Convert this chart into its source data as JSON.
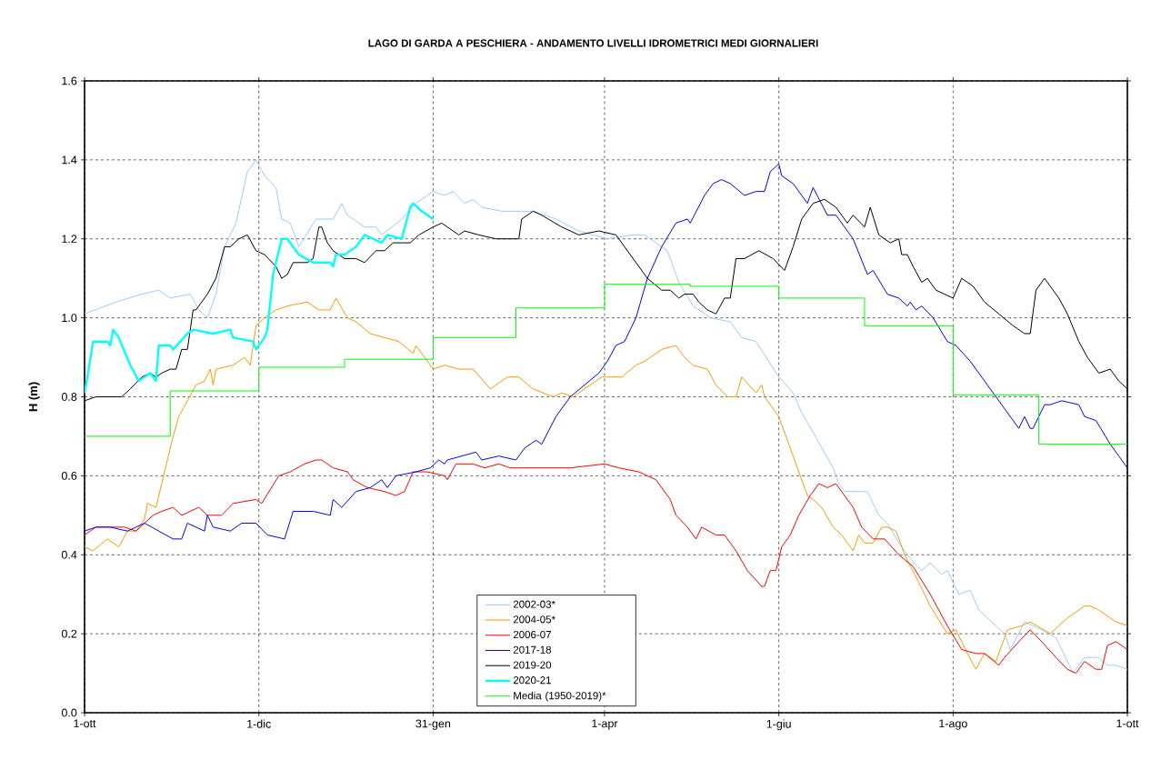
{
  "chart_data": {
    "type": "line",
    "title": "LAGO DI GARDA A PESCHIERA - ANDAMENTO  LIVELLI IDROMETRICI MEDI GIORNALIERI",
    "ylabel": "H (m)",
    "xlim": [
      "2001-10-01",
      "2002-10-01"
    ],
    "ylim": [
      0,
      1.6
    ],
    "xticks": [
      {
        "value": "2001-10-01",
        "label": "1-ott"
      },
      {
        "value": "2001-12-01",
        "label": "1-dic"
      },
      {
        "value": "2002-01-31",
        "label": "31-gen"
      },
      {
        "value": "2002-04-01",
        "label": "1-apr"
      },
      {
        "value": "2002-06-01",
        "label": "1-giu"
      },
      {
        "value": "2002-08-01",
        "label": "1-ago"
      },
      {
        "value": "2002-10-01",
        "label": "1-ott"
      }
    ],
    "yticks": [
      {
        "value": 0,
        "label": "0.0"
      },
      0.2,
      0.4,
      0.6,
      0.8,
      {
        "value": 1,
        "label": "1.0"
      },
      1.2,
      1.4,
      1.6
    ],
    "grid": true,
    "legend": "bottom",
    "line_style": "solid",
    "series": [
      {
        "name": "2002-03*",
        "color": "#99ccff",
        "x": [
          "2001-10-01",
          "2001-10-12",
          "2001-10-21",
          "2001-10-27",
          "2001-10-31",
          "2001-11-07",
          "2001-11-10",
          "2001-11-13",
          "2001-11-16",
          "2001-11-19",
          "2001-11-23",
          "2001-11-27",
          "2001-11-30",
          "2001-12-03",
          "2001-12-07",
          "2001-12-09",
          "2001-12-12",
          "2001-12-15",
          "2001-12-21",
          "2001-12-27",
          "2001-12-30",
          "2002-01-01",
          "2002-01-07",
          "2002-01-11",
          "2002-01-13",
          "2002-01-20",
          "2002-01-25",
          "2002-01-31",
          "2002-02-04",
          "2002-02-07",
          "2002-02-11",
          "2002-02-14",
          "2002-02-17",
          "2002-02-24",
          "2002-03-07",
          "2002-03-15",
          "2002-03-23",
          "2002-04-02",
          "2002-04-11",
          "2002-04-15",
          "2002-04-23",
          "2002-04-27",
          "2002-05-02",
          "2002-05-08",
          "2002-05-15",
          "2002-05-19",
          "2002-05-24",
          "2002-06-01",
          "2002-06-06",
          "2002-06-09",
          "2002-06-13",
          "2002-06-20",
          "2002-06-22",
          "2002-06-24",
          "2002-06-29",
          "2002-07-02",
          "2002-07-06",
          "2002-07-09",
          "2002-07-13",
          "2002-07-17",
          "2002-07-21",
          "2002-07-24",
          "2002-07-28",
          "2002-07-30",
          "2002-08-03",
          "2002-08-07",
          "2002-08-10",
          "2002-08-16",
          "2002-08-19",
          "2002-08-21",
          "2002-08-26",
          "2002-09-01",
          "2002-09-06",
          "2002-09-12",
          "2002-09-16",
          "2002-09-21",
          "2002-09-24",
          "2002-09-27",
          "2002-10-01"
        ],
        "values": [
          1.01,
          1.04,
          1.06,
          1.07,
          1.05,
          1.06,
          1.02,
          1.0,
          1.06,
          1.18,
          1.24,
          1.37,
          1.4,
          1.36,
          1.33,
          1.25,
          1.24,
          1.18,
          1.25,
          1.25,
          1.29,
          1.26,
          1.23,
          1.23,
          1.21,
          1.25,
          1.29,
          1.32,
          1.31,
          1.32,
          1.29,
          1.3,
          1.28,
          1.27,
          1.27,
          1.25,
          1.22,
          1.2,
          1.21,
          1.21,
          1.17,
          1.09,
          1.03,
          1.0,
          0.99,
          0.95,
          0.94,
          0.85,
          0.81,
          0.76,
          0.71,
          0.62,
          0.58,
          0.56,
          0.56,
          0.56,
          0.5,
          0.48,
          0.43,
          0.39,
          0.36,
          0.38,
          0.35,
          0.36,
          0.3,
          0.31,
          0.26,
          0.22,
          0.2,
          0.16,
          0.23,
          0.21,
          0.19,
          0.1,
          0.14,
          0.14,
          0.12,
          0.12,
          0.11
        ]
      },
      {
        "name": "2004-05*",
        "color": "#ff9900",
        "x": [
          "2001-10-01",
          "2001-10-04",
          "2001-10-09",
          "2001-10-13",
          "2001-10-16",
          "2001-10-19",
          "2001-10-22",
          "2001-10-23",
          "2001-10-26",
          "2001-10-27",
          "2001-10-29",
          "2001-11-01",
          "2001-11-03",
          "2001-11-06",
          "2001-11-09",
          "2001-11-12",
          "2001-11-14",
          "2001-11-15",
          "2001-11-16",
          "2001-11-22",
          "2001-11-26",
          "2001-11-28",
          "2001-11-30",
          "2001-12-03",
          "2001-12-07",
          "2001-12-11",
          "2001-12-18",
          "2001-12-22",
          "2001-12-26",
          "2001-12-28",
          "2002-01-01",
          "2002-01-04",
          "2002-01-09",
          "2002-01-14",
          "2002-01-19",
          "2002-01-24",
          "2002-01-25",
          "2002-01-31",
          "2002-02-04",
          "2002-02-09",
          "2002-02-14",
          "2002-02-20",
          "2002-02-26",
          "2002-03-02",
          "2002-03-07",
          "2002-03-14",
          "2002-03-17",
          "2002-03-21",
          "2002-03-25",
          "2002-03-31",
          "2002-04-07",
          "2002-04-12",
          "2002-04-15",
          "2002-04-21",
          "2002-04-26",
          "2002-04-29",
          "2002-05-02",
          "2002-05-07",
          "2002-05-10",
          "2002-05-14",
          "2002-05-17",
          "2002-05-19",
          "2002-05-24",
          "2002-05-26",
          "2002-05-27",
          "2002-06-01",
          "2002-06-06",
          "2002-06-11",
          "2002-06-13",
          "2002-06-16",
          "2002-06-20",
          "2002-06-23",
          "2002-06-27",
          "2002-06-29",
          "2002-07-01",
          "2002-07-04",
          "2002-07-07",
          "2002-07-09",
          "2002-07-12",
          "2002-07-15",
          "2002-07-20",
          "2002-07-24",
          "2002-07-30",
          "2002-08-02",
          "2002-08-06",
          "2002-08-09",
          "2002-08-12",
          "2002-08-16",
          "2002-08-20",
          "2002-08-25",
          "2002-08-28",
          "2002-09-04",
          "2002-09-10",
          "2002-09-16",
          "2002-09-18",
          "2002-09-21",
          "2002-09-27",
          "2002-10-01"
        ],
        "values": [
          0.42,
          0.41,
          0.44,
          0.42,
          0.46,
          0.46,
          0.49,
          0.53,
          0.52,
          0.55,
          0.61,
          0.7,
          0.75,
          0.79,
          0.83,
          0.84,
          0.87,
          0.83,
          0.87,
          0.88,
          0.9,
          0.88,
          0.98,
          1.0,
          1.02,
          1.03,
          1.04,
          1.02,
          1.02,
          1.05,
          1.0,
          0.99,
          0.96,
          0.95,
          0.94,
          0.91,
          0.93,
          0.87,
          0.88,
          0.87,
          0.87,
          0.82,
          0.85,
          0.85,
          0.82,
          0.8,
          0.81,
          0.8,
          0.82,
          0.85,
          0.85,
          0.88,
          0.89,
          0.92,
          0.93,
          0.9,
          0.88,
          0.87,
          0.83,
          0.8,
          0.8,
          0.85,
          0.81,
          0.83,
          0.8,
          0.75,
          0.65,
          0.55,
          0.54,
          0.52,
          0.47,
          0.45,
          0.41,
          0.45,
          0.43,
          0.43,
          0.47,
          0.47,
          0.46,
          0.4,
          0.33,
          0.27,
          0.2,
          0.21,
          0.15,
          0.11,
          0.15,
          0.13,
          0.21,
          0.22,
          0.23,
          0.2,
          0.24,
          0.27,
          0.27,
          0.26,
          0.23,
          0.22
        ]
      },
      {
        "name": "2006-07",
        "color": "#ff0000",
        "x": [
          "2001-10-01",
          "2001-10-05",
          "2001-10-10",
          "2001-10-15",
          "2001-10-19",
          "2001-10-25",
          "2001-10-28",
          "2001-11-01",
          "2001-11-04",
          "2001-11-10",
          "2001-11-13",
          "2001-11-18",
          "2001-11-22",
          "2001-11-30",
          "2001-12-02",
          "2001-12-08",
          "2001-12-12",
          "2001-12-17",
          "2001-12-21",
          "2001-12-23",
          "2001-12-27",
          "2002-01-01",
          "2002-01-03",
          "2002-01-08",
          "2002-01-14",
          "2002-01-18",
          "2002-01-21",
          "2002-01-24",
          "2002-01-29",
          "2002-02-04",
          "2002-02-05",
          "2002-02-08",
          "2002-02-14",
          "2002-02-18",
          "2002-02-23",
          "2002-02-27",
          "2002-03-08",
          "2002-03-20",
          "2002-04-01",
          "2002-04-06",
          "2002-04-13",
          "2002-04-19",
          "2002-04-24",
          "2002-04-26",
          "2002-04-30",
          "2002-05-03",
          "2002-05-05",
          "2002-05-10",
          "2002-05-13",
          "2002-05-17",
          "2002-05-21",
          "2002-05-26",
          "2002-05-27",
          "2002-05-29",
          "2002-05-31",
          "2002-06-02",
          "2002-06-05",
          "2002-06-08",
          "2002-06-12",
          "2002-06-15",
          "2002-06-18",
          "2002-06-21",
          "2002-06-24",
          "2002-06-27",
          "2002-06-30",
          "2002-07-04",
          "2002-07-08",
          "2002-07-13",
          "2002-07-18",
          "2002-07-24",
          "2002-07-30",
          "2002-08-04",
          "2002-08-09",
          "2002-08-12",
          "2002-08-17",
          "2002-08-19",
          "2002-08-24",
          "2002-08-28",
          "2002-09-01",
          "2002-09-06",
          "2002-09-10",
          "2002-09-13",
          "2002-09-16",
          "2002-09-20",
          "2002-09-22",
          "2002-09-24",
          "2002-09-27",
          "2002-10-01"
        ],
        "values": [
          0.45,
          0.47,
          0.47,
          0.47,
          0.46,
          0.5,
          0.51,
          0.52,
          0.5,
          0.52,
          0.5,
          0.5,
          0.53,
          0.54,
          0.53,
          0.6,
          0.61,
          0.63,
          0.64,
          0.64,
          0.62,
          0.61,
          0.59,
          0.57,
          0.56,
          0.55,
          0.56,
          0.61,
          0.61,
          0.6,
          0.59,
          0.63,
          0.63,
          0.62,
          0.63,
          0.62,
          0.62,
          0.62,
          0.63,
          0.62,
          0.61,
          0.59,
          0.54,
          0.5,
          0.47,
          0.44,
          0.47,
          0.45,
          0.45,
          0.41,
          0.36,
          0.32,
          0.32,
          0.36,
          0.36,
          0.42,
          0.45,
          0.5,
          0.55,
          0.58,
          0.57,
          0.58,
          0.55,
          0.52,
          0.47,
          0.44,
          0.44,
          0.4,
          0.37,
          0.3,
          0.22,
          0.16,
          0.15,
          0.15,
          0.12,
          0.14,
          0.18,
          0.21,
          0.18,
          0.14,
          0.11,
          0.1,
          0.13,
          0.11,
          0.11,
          0.17,
          0.18,
          0.16
        ]
      },
      {
        "name": "2017-18",
        "color": "#0000ff",
        "x": [
          "2001-10-01",
          "2001-10-05",
          "2001-10-10",
          "2001-10-16",
          "2001-10-22",
          "2001-10-27",
          "2001-11-01",
          "2001-11-04",
          "2001-11-06",
          "2001-11-12",
          "2001-11-13",
          "2001-11-15",
          "2001-11-21",
          "2001-11-25",
          "2001-11-30",
          "2001-12-04",
          "2001-12-10",
          "2001-12-13",
          "2001-12-20",
          "2001-12-26",
          "2001-12-27",
          "2001-12-30",
          "2002-01-04",
          "2002-01-09",
          "2002-01-13",
          "2002-01-15",
          "2002-01-18",
          "2002-01-25",
          "2002-01-30",
          "2002-02-02",
          "2002-02-04",
          "2002-02-05",
          "2002-02-15",
          "2002-02-17",
          "2002-02-23",
          "2002-03-01",
          "2002-03-04",
          "2002-03-08",
          "2002-03-10",
          "2002-03-15",
          "2002-03-20",
          "2002-03-30",
          "2002-04-02",
          "2002-04-05",
          "2002-04-08",
          "2002-04-12",
          "2002-04-16",
          "2002-04-21",
          "2002-04-26",
          "2002-04-30",
          "2002-05-01",
          "2002-05-06",
          "2002-05-09",
          "2002-05-12",
          "2002-05-15",
          "2002-05-20",
          "2002-05-24",
          "2002-05-27",
          "2002-05-29",
          "2002-06-01",
          "2002-06-02",
          "2002-06-06",
          "2002-06-11",
          "2002-06-13",
          "2002-06-18",
          "2002-06-21",
          "2002-06-27",
          "2002-07-02",
          "2002-07-04",
          "2002-07-09",
          "2002-07-13",
          "2002-07-16",
          "2002-07-17",
          "2002-07-19",
          "2002-07-21",
          "2002-07-25",
          "2002-07-30",
          "2002-08-02",
          "2002-08-07",
          "2002-08-13",
          "2002-08-19",
          "2002-08-24",
          "2002-08-26",
          "2002-08-28",
          "2002-08-29",
          "2002-08-31",
          "2002-09-02",
          "2002-09-04",
          "2002-09-08",
          "2002-09-14",
          "2002-09-16",
          "2002-09-20",
          "2002-09-25",
          "2002-09-28",
          "2002-10-01"
        ],
        "values": [
          0.46,
          0.47,
          0.47,
          0.46,
          0.48,
          0.46,
          0.44,
          0.44,
          0.48,
          0.46,
          0.5,
          0.47,
          0.46,
          0.48,
          0.48,
          0.45,
          0.44,
          0.51,
          0.51,
          0.5,
          0.54,
          0.52,
          0.56,
          0.57,
          0.59,
          0.57,
          0.6,
          0.61,
          0.62,
          0.64,
          0.63,
          0.64,
          0.66,
          0.64,
          0.65,
          0.64,
          0.67,
          0.69,
          0.68,
          0.75,
          0.8,
          0.86,
          0.89,
          0.93,
          0.94,
          1.0,
          1.1,
          1.18,
          1.24,
          1.25,
          1.24,
          1.31,
          1.34,
          1.35,
          1.34,
          1.31,
          1.32,
          1.32,
          1.37,
          1.39,
          1.36,
          1.34,
          1.29,
          1.33,
          1.26,
          1.26,
          1.2,
          1.11,
          1.12,
          1.06,
          1.05,
          1.03,
          1.04,
          1.02,
          1.03,
          1.0,
          0.94,
          0.93,
          0.89,
          0.83,
          0.77,
          0.72,
          0.75,
          0.72,
          0.72,
          0.75,
          0.78,
          0.78,
          0.79,
          0.78,
          0.75,
          0.74,
          0.68,
          0.65,
          0.62
        ]
      },
      {
        "name": "2019-20",
        "color": "#000000",
        "x": [
          "2001-10-01",
          "2001-10-05",
          "2001-10-11",
          "2001-10-14",
          "2001-10-17",
          "2001-10-21",
          "2001-10-24",
          "2001-10-26",
          "2001-10-28",
          "2001-10-31",
          "2001-11-02",
          "2001-11-04",
          "2001-11-06",
          "2001-11-08",
          "2001-11-09",
          "2001-11-13",
          "2001-11-16",
          "2001-11-19",
          "2001-11-21",
          "2001-11-24",
          "2001-11-27",
          "2001-11-30",
          "2001-12-03",
          "2001-12-07",
          "2001-12-09",
          "2001-12-11",
          "2001-12-13",
          "2001-12-18",
          "2001-12-20",
          "2001-12-22",
          "2001-12-23",
          "2001-12-25",
          "2001-12-27",
          "2001-12-31",
          "2002-01-04",
          "2002-01-07",
          "2002-01-11",
          "2002-01-14",
          "2002-01-17",
          "2002-01-23",
          "2002-01-26",
          "2002-01-31",
          "2002-02-03",
          "2002-02-07",
          "2002-02-09",
          "2002-02-11",
          "2002-02-16",
          "2002-02-22",
          "2002-03-02",
          "2002-03-03",
          "2002-03-07",
          "2002-03-10",
          "2002-03-17",
          "2002-03-23",
          "2002-03-30",
          "2002-04-05",
          "2002-04-09",
          "2002-04-13",
          "2002-04-16",
          "2002-04-21",
          "2002-04-24",
          "2002-04-27",
          "2002-04-29",
          "2002-05-02",
          "2002-05-04",
          "2002-05-07",
          "2002-05-10",
          "2002-05-13",
          "2002-05-15",
          "2002-05-17",
          "2002-05-20",
          "2002-05-25",
          "2002-05-30",
          "2002-06-03",
          "2002-06-06",
          "2002-06-09",
          "2002-06-13",
          "2002-06-17",
          "2002-06-21",
          "2002-06-25",
          "2002-06-27",
          "2002-07-01",
          "2002-07-03",
          "2002-07-06",
          "2002-07-10",
          "2002-07-13",
          "2002-07-14",
          "2002-07-16",
          "2002-07-18",
          "2002-07-21",
          "2002-07-23",
          "2002-07-26",
          "2002-07-29",
          "2002-08-01",
          "2002-08-04",
          "2002-08-08",
          "2002-08-12",
          "2002-08-17",
          "2002-08-22",
          "2002-08-26",
          "2002-08-28",
          "2002-08-30",
          "2002-09-02",
          "2002-09-07",
          "2002-09-10",
          "2002-09-14",
          "2002-09-17",
          "2002-09-21",
          "2002-09-25",
          "2002-09-28",
          "2002-10-01"
        ],
        "values": [
          0.79,
          0.8,
          0.8,
          0.8,
          0.82,
          0.85,
          0.86,
          0.85,
          0.86,
          0.87,
          0.87,
          0.92,
          0.92,
          1.02,
          1.02,
          1.06,
          1.1,
          1.18,
          1.18,
          1.2,
          1.21,
          1.17,
          1.16,
          1.13,
          1.1,
          1.11,
          1.14,
          1.14,
          1.15,
          1.23,
          1.23,
          1.19,
          1.17,
          1.15,
          1.15,
          1.14,
          1.17,
          1.17,
          1.19,
          1.19,
          1.21,
          1.23,
          1.24,
          1.22,
          1.21,
          1.22,
          1.21,
          1.2,
          1.2,
          1.25,
          1.27,
          1.26,
          1.23,
          1.21,
          1.22,
          1.21,
          1.17,
          1.13,
          1.1,
          1.07,
          1.07,
          1.05,
          1.06,
          1.06,
          1.04,
          1.02,
          1.01,
          1.05,
          1.05,
          1.15,
          1.15,
          1.17,
          1.15,
          1.12,
          1.18,
          1.25,
          1.29,
          1.3,
          1.28,
          1.24,
          1.26,
          1.23,
          1.28,
          1.21,
          1.19,
          1.2,
          1.16,
          1.16,
          1.13,
          1.09,
          1.1,
          1.07,
          1.06,
          1.05,
          1.1,
          1.08,
          1.04,
          1.01,
          0.98,
          0.96,
          0.96,
          1.07,
          1.1,
          1.05,
          1.01,
          0.94,
          0.9,
          0.86,
          0.87,
          0.84,
          0.82
        ]
      },
      {
        "name": "2020-21",
        "color": "#00ffff",
        "x": [
          "2001-10-01",
          "2001-10-02",
          "2001-10-04",
          "2001-10-09",
          "2001-10-10",
          "2001-10-11",
          "2001-10-13",
          "2001-10-17",
          "2001-10-20",
          "2001-10-24",
          "2001-10-26",
          "2001-10-27",
          "2001-10-31",
          "2001-11-01",
          "2001-11-06",
          "2001-11-08",
          "2001-11-15",
          "2001-11-21",
          "2001-11-22",
          "2001-11-29",
          "2001-11-30",
          "2001-12-03",
          "2001-12-04",
          "2001-12-06",
          "2001-12-09",
          "2001-12-11",
          "2001-12-15",
          "2001-12-20",
          "2001-12-26",
          "2001-12-27",
          "2001-12-28",
          "2001-12-31",
          "2002-01-04",
          "2002-01-07",
          "2002-01-10",
          "2002-01-13",
          "2002-01-15",
          "2002-01-20",
          "2002-01-23",
          "2002-01-24",
          "2002-01-27",
          "2002-01-29",
          "2002-01-31"
        ],
        "values": [
          0.81,
          0.85,
          0.94,
          0.94,
          0.93,
          0.97,
          0.95,
          0.88,
          0.84,
          0.86,
          0.84,
          0.93,
          0.93,
          0.92,
          0.96,
          0.97,
          0.96,
          0.97,
          0.95,
          0.94,
          0.92,
          0.95,
          0.97,
          1.11,
          1.2,
          1.2,
          1.16,
          1.14,
          1.14,
          1.13,
          1.16,
          1.16,
          1.18,
          1.21,
          1.2,
          1.19,
          1.21,
          1.2,
          1.28,
          1.29,
          1.27,
          1.26,
          1.25
        ]
      },
      {
        "name": "Media (1950-2019)*",
        "type": "step",
        "color": "#00ff00",
        "x": [
          "2001-10-01",
          "2001-10-31",
          "2001-12-01",
          "2001-12-31",
          "2002-01-31",
          "2002-03-01",
          "2002-04-01",
          "2002-05-01",
          "2002-06-01",
          "2002-07-01",
          "2002-08-01",
          "2002-08-31",
          "2002-10-01"
        ],
        "values": [
          0.7,
          0.815,
          0.875,
          0.895,
          0.95,
          1.025,
          1.085,
          1.08,
          1.05,
          0.98,
          0.805,
          0.68,
          0.68
        ]
      }
    ]
  }
}
